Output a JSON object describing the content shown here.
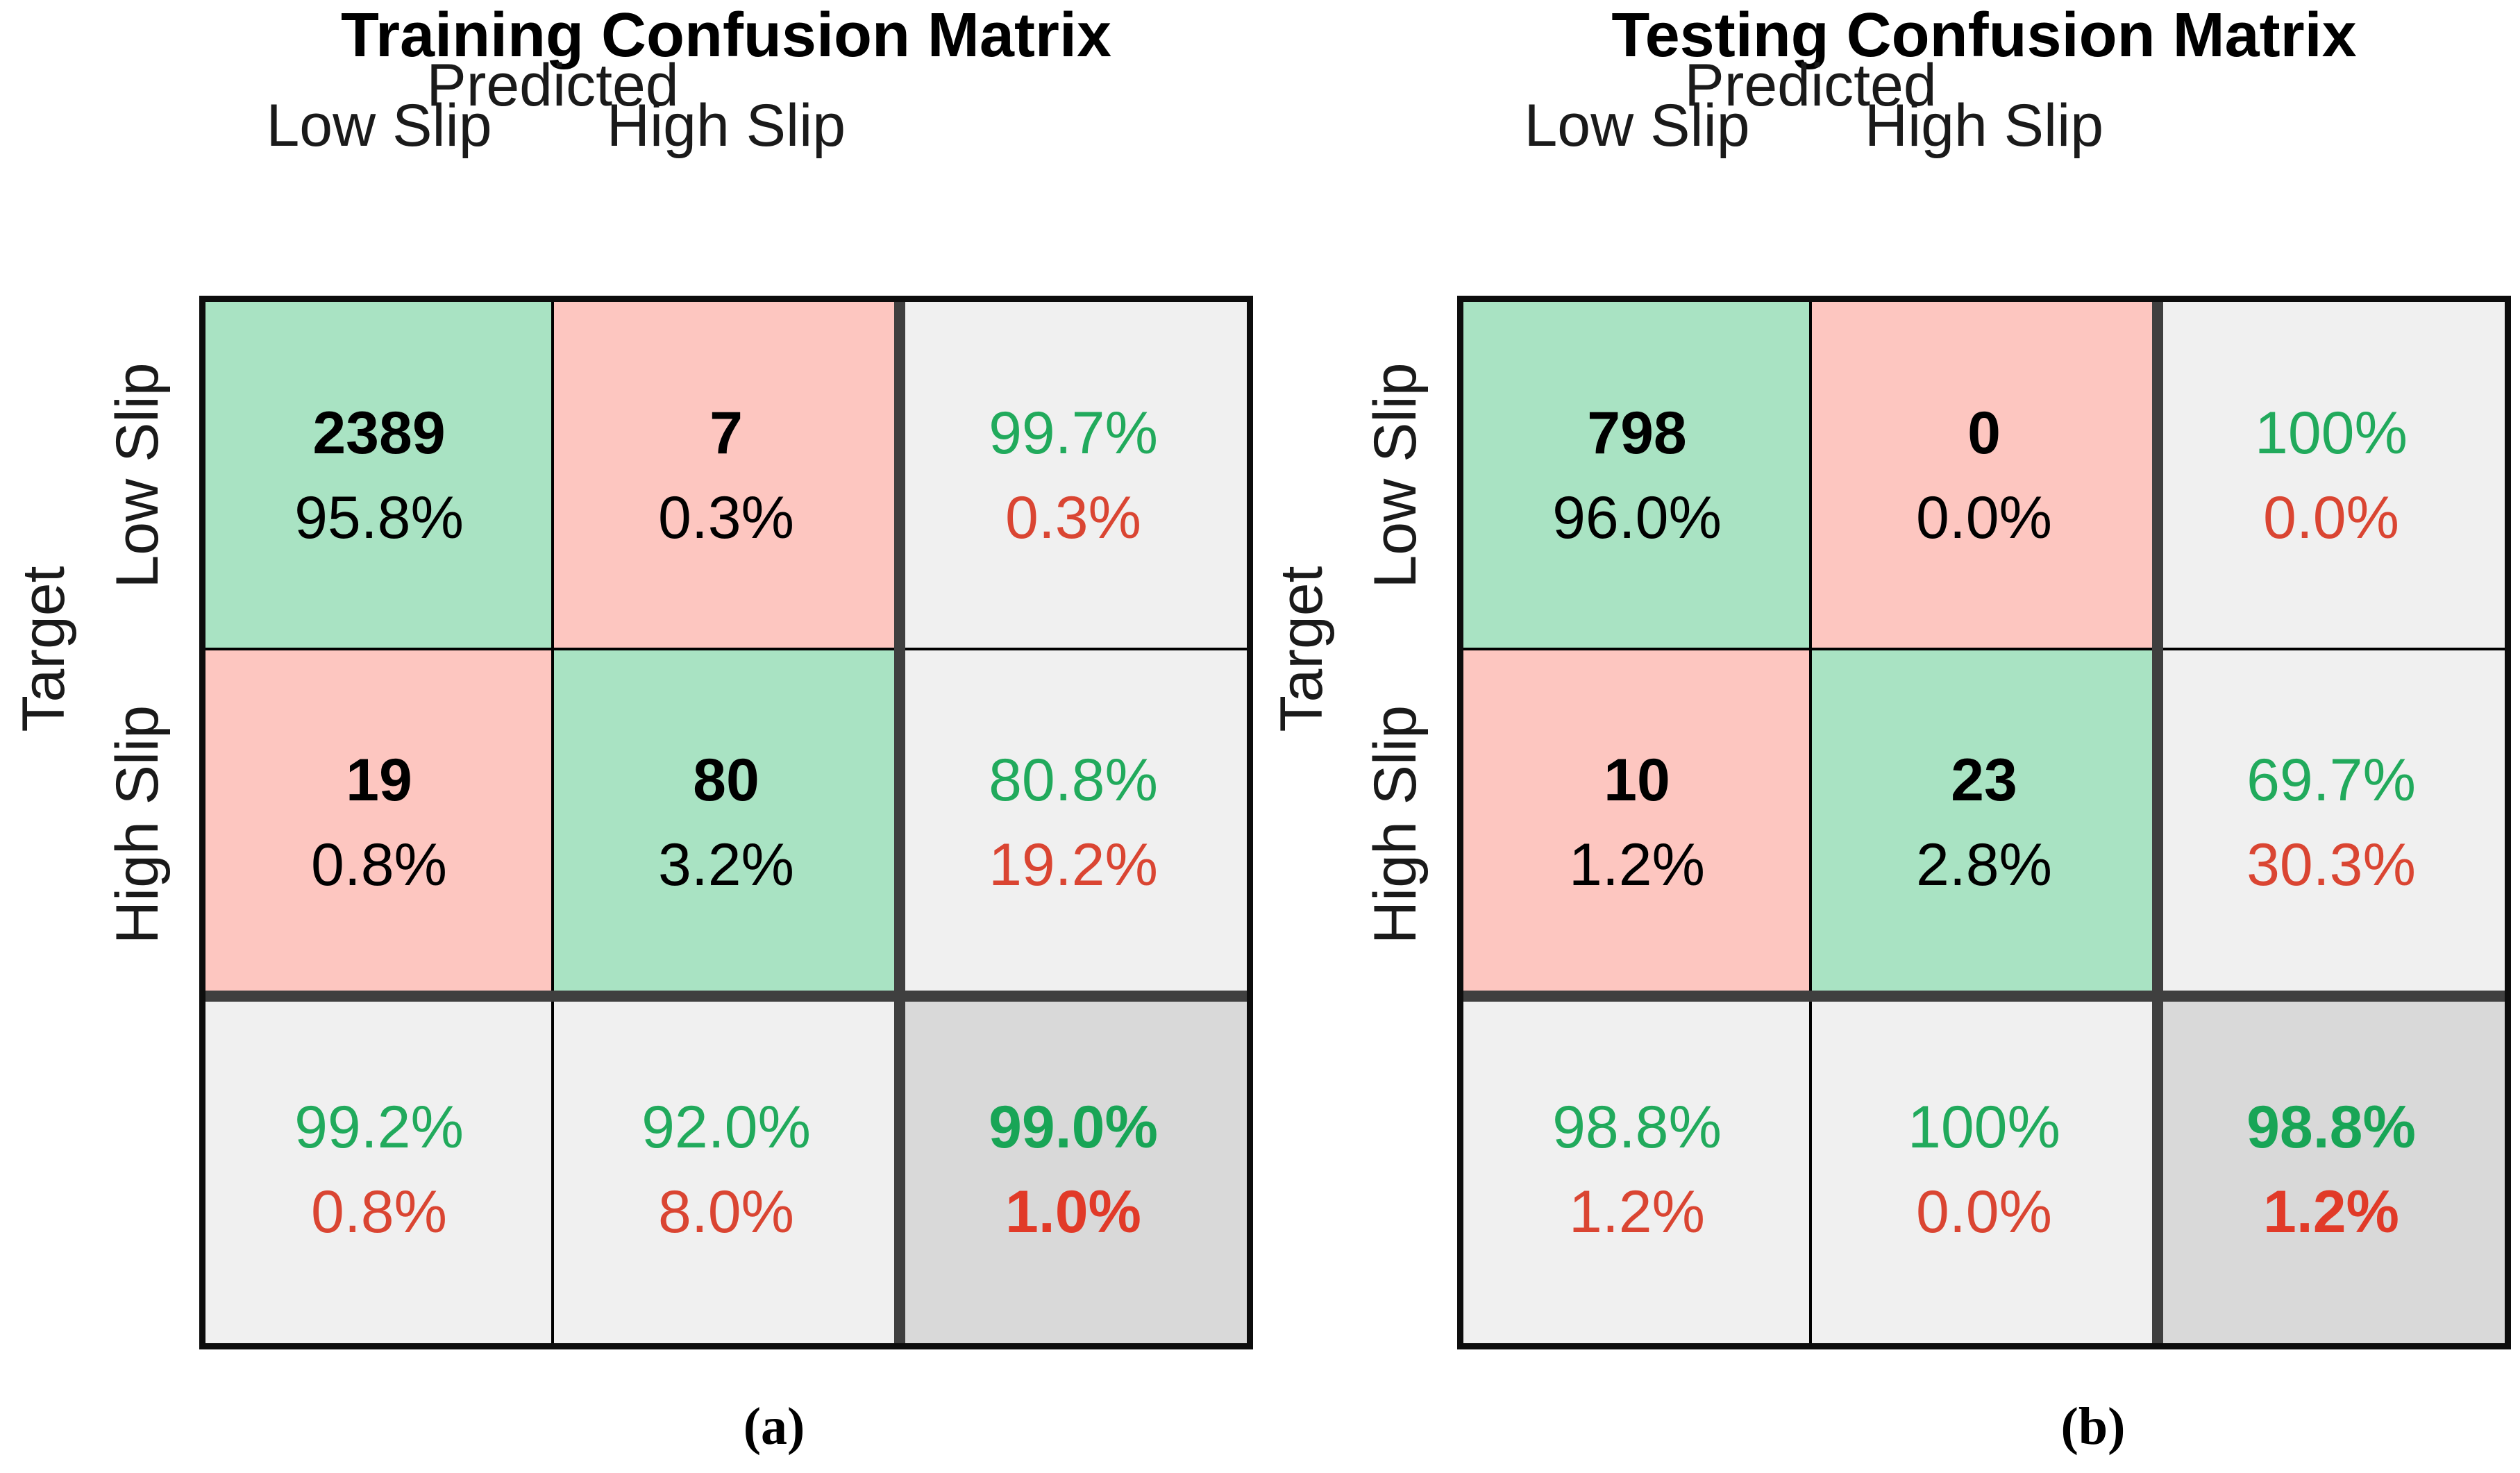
{
  "figure": {
    "caption_a": "(a)",
    "caption_b": "(b)"
  },
  "colors": {
    "correct_cell_bg": "#a9e3c3",
    "incorrect_cell_bg": "#fdc6c0",
    "summary_cell_bg": "#f0f0f0",
    "total_cell_bg": "#d9d9d9",
    "summary_green_text": "#21aa5c",
    "summary_red_text": "#da4532",
    "thick_divider": "#3f3f3f",
    "grid_border": "#0d0d0d"
  },
  "matrices": [
    {
      "title": "Training Confusion Matrix",
      "predicted_label": "Predicted",
      "target_label": "Target",
      "col_labels": [
        "Low Slip",
        "High Slip"
      ],
      "row_labels": [
        "Low Slip",
        "High Slip"
      ],
      "cells": [
        {
          "line1": "2389",
          "line2": "95.8%"
        },
        {
          "line1": "7",
          "line2": "0.3%"
        },
        {
          "line1": "99.7%",
          "line2": "0.3%"
        },
        {
          "line1": "19",
          "line2": "0.8%"
        },
        {
          "line1": "80",
          "line2": "3.2%"
        },
        {
          "line1": "80.8%",
          "line2": "19.2%"
        },
        {
          "line1": "99.2%",
          "line2": "0.8%"
        },
        {
          "line1": "92.0%",
          "line2": "8.0%"
        },
        {
          "line1": "99.0%",
          "line2": "1.0%"
        }
      ]
    },
    {
      "title": "Testing Confusion Matrix",
      "predicted_label": "Predicted",
      "target_label": "Target",
      "col_labels": [
        "Low Slip",
        "High Slip"
      ],
      "row_labels": [
        "Low Slip",
        "High Slip"
      ],
      "cells": [
        {
          "line1": "798",
          "line2": "96.0%"
        },
        {
          "line1": "0",
          "line2": "0.0%"
        },
        {
          "line1": "100%",
          "line2": "0.0%"
        },
        {
          "line1": "10",
          "line2": "1.2%"
        },
        {
          "line1": "23",
          "line2": "2.8%"
        },
        {
          "line1": "69.7%",
          "line2": "30.3%"
        },
        {
          "line1": "98.8%",
          "line2": "1.2%"
        },
        {
          "line1": "100%",
          "line2": "0.0%"
        },
        {
          "line1": "98.8%",
          "line2": "1.2%"
        }
      ]
    }
  ],
  "chart_data": [
    {
      "type": "heatmap",
      "subtype": "confusion-matrix",
      "title": "Training Confusion Matrix",
      "xlabel": "Predicted",
      "ylabel": "Target",
      "classes": [
        "Low Slip",
        "High Slip"
      ],
      "matrix_counts": [
        [
          2389,
          7
        ],
        [
          19,
          80
        ]
      ],
      "matrix_pct_of_total": [
        [
          "95.8%",
          "0.3%"
        ],
        [
          "0.8%",
          "3.2%"
        ]
      ],
      "row_summary": [
        {
          "correct": "99.7%",
          "incorrect": "0.3%"
        },
        {
          "correct": "80.8%",
          "incorrect": "19.2%"
        }
      ],
      "col_summary": [
        {
          "correct": "99.2%",
          "incorrect": "0.8%"
        },
        {
          "correct": "92.0%",
          "incorrect": "8.0%"
        }
      ],
      "overall": {
        "correct": "99.0%",
        "incorrect": "1.0%"
      },
      "legend_position": "none",
      "grid": true
    },
    {
      "type": "heatmap",
      "subtype": "confusion-matrix",
      "title": "Testing Confusion Matrix",
      "xlabel": "Predicted",
      "ylabel": "Target",
      "classes": [
        "Low Slip",
        "High Slip"
      ],
      "matrix_counts": [
        [
          798,
          0
        ],
        [
          10,
          23
        ]
      ],
      "matrix_pct_of_total": [
        [
          "96.0%",
          "0.0%"
        ],
        [
          "1.2%",
          "2.8%"
        ]
      ],
      "row_summary": [
        {
          "correct": "100%",
          "incorrect": "0.0%"
        },
        {
          "correct": "69.7%",
          "incorrect": "30.3%"
        }
      ],
      "col_summary": [
        {
          "correct": "98.8%",
          "incorrect": "1.2%"
        },
        {
          "correct": "100%",
          "incorrect": "0.0%"
        }
      ],
      "overall": {
        "correct": "98.8%",
        "incorrect": "1.2%"
      },
      "legend_position": "none",
      "grid": true
    }
  ]
}
